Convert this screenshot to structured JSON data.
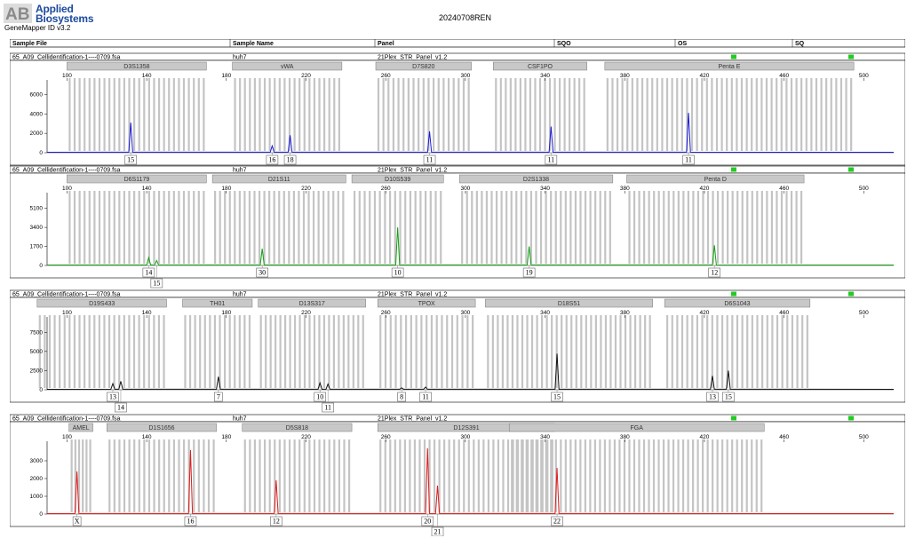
{
  "app": {
    "logo_line1": "Applied",
    "logo_line2": "Biosystems",
    "logo_mark": "AB",
    "version": "GeneMapper ID v3.2",
    "title": "20240708REN"
  },
  "columns": {
    "sample_file": "Sample File",
    "sample_name": "Sample Name",
    "panel": "Panel",
    "sqo": "SQO",
    "os": "OS",
    "sq": "SQ"
  },
  "status_color": "#22cc22",
  "panels": [
    {
      "sample_file": "65_A09_Cellidentification-1----0709.fsa",
      "sample_name": "huh7",
      "panel": "21Plex_STR_Panel_v1.2",
      "dye_color": "#1a1ad6",
      "y_ticks": [
        "6000",
        "4000",
        "2000",
        "0"
      ],
      "y_max": 7500,
      "size_ticks": [
        "100",
        "140",
        "180",
        "220",
        "260",
        "300",
        "340",
        "380",
        "420",
        "460",
        "500"
      ],
      "markers": [
        {
          "name": "D3S1358",
          "start": 100,
          "end": 170
        },
        {
          "name": "vWA",
          "start": 183,
          "end": 238
        },
        {
          "name": "D7S820",
          "start": 255,
          "end": 303
        },
        {
          "name": "CSF1PO",
          "start": 314,
          "end": 361
        },
        {
          "name": "Penta E",
          "start": 370,
          "end": 495
        }
      ],
      "peaks": [
        {
          "size": 132,
          "height": 3100,
          "allele": "15",
          "row": 0
        },
        {
          "size": 203,
          "height": 700,
          "allele": "16",
          "row": 0
        },
        {
          "size": 212,
          "height": 1800,
          "allele": "18",
          "row": 0
        },
        {
          "size": 282,
          "height": 2200,
          "allele": "11",
          "row": 0
        },
        {
          "size": 343,
          "height": 2700,
          "allele": "11",
          "row": 0
        },
        {
          "size": 412,
          "height": 4100,
          "allele": "11",
          "row": 0
        }
      ]
    },
    {
      "sample_file": "65_A09_Cellidentification-1----0709.fsa",
      "sample_name": "huh7",
      "panel": "21Plex_STR_Panel_v1.2",
      "dye_color": "#11a011",
      "y_ticks": [
        "5100",
        "3400",
        "1700",
        "0"
      ],
      "y_max": 6500,
      "size_ticks": [
        "100",
        "140",
        "180",
        "220",
        "260",
        "300",
        "340",
        "380",
        "420",
        "460",
        "500"
      ],
      "markers": [
        {
          "name": "D6S1179",
          "start": 100,
          "end": 170
        },
        {
          "name": "D21S11",
          "start": 173,
          "end": 240
        },
        {
          "name": "D10S539",
          "start": 243,
          "end": 289
        },
        {
          "name": "D2S1338",
          "start": 297,
          "end": 374
        },
        {
          "name": "Penta D",
          "start": 381,
          "end": 470
        }
      ],
      "peaks": [
        {
          "size": 141,
          "height": 700,
          "allele": "14",
          "row": 0
        },
        {
          "size": 145,
          "height": 450,
          "allele": "15",
          "row": 1
        },
        {
          "size": 198,
          "height": 1500,
          "allele": "30",
          "row": 0
        },
        {
          "size": 266,
          "height": 3400,
          "allele": "10",
          "row": 0
        },
        {
          "size": 332,
          "height": 1700,
          "allele": "19",
          "row": 0
        },
        {
          "size": 425,
          "height": 1800,
          "allele": "12",
          "row": 0
        }
      ]
    },
    {
      "sample_file": "65_A09_Cellidentification-1----0709.fsa",
      "sample_name": "huh7",
      "panel": "21Plex_STR_Panel_v1.2",
      "dye_color": "#111111",
      "y_ticks": [
        "7500",
        "5000",
        "2500",
        "0"
      ],
      "y_max": 9500,
      "size_ticks": [
        "100",
        "140",
        "180",
        "220",
        "260",
        "300",
        "340",
        "380",
        "420",
        "460",
        "500"
      ],
      "markers": [
        {
          "name": "D19S433",
          "start": 85,
          "end": 150
        },
        {
          "name": "TH01",
          "start": 158,
          "end": 193
        },
        {
          "name": "D13S317",
          "start": 196,
          "end": 250
        },
        {
          "name": "TPOX",
          "start": 256,
          "end": 305
        },
        {
          "name": "D18S51",
          "start": 310,
          "end": 394
        },
        {
          "name": "D6S1043",
          "start": 400,
          "end": 473
        }
      ],
      "peaks": [
        {
          "size": 123,
          "height": 800,
          "allele": "13",
          "row": 0
        },
        {
          "size": 127,
          "height": 1100,
          "allele": "14",
          "row": 1
        },
        {
          "size": 176,
          "height": 1700,
          "allele": "7",
          "row": 0
        },
        {
          "size": 227,
          "height": 900,
          "allele": "10",
          "row": 0
        },
        {
          "size": 231,
          "height": 750,
          "allele": "11",
          "row": 1
        },
        {
          "size": 268,
          "height": 250,
          "allele": "8",
          "row": 0
        },
        {
          "size": 280,
          "height": 350,
          "allele": "11",
          "row": 0
        },
        {
          "size": 346,
          "height": 4700,
          "allele": "15",
          "row": 0
        },
        {
          "size": 424,
          "height": 1800,
          "allele": "13",
          "row": 0
        },
        {
          "size": 432,
          "height": 2500,
          "allele": "15",
          "row": 0
        }
      ]
    },
    {
      "sample_file": "65_A09_Cellidentification-1----0709.fsa",
      "sample_name": "huh7",
      "panel": "21Plex_STR_Panel_v1.2",
      "dye_color": "#e01b1b",
      "y_ticks": [
        "3000",
        "2000",
        "1000",
        "0"
      ],
      "y_max": 4100,
      "size_ticks": [
        "100",
        "140",
        "180",
        "220",
        "260",
        "300",
        "340",
        "380",
        "420",
        "460",
        "500"
      ],
      "markers": [
        {
          "name": "AMEL",
          "start": 101,
          "end": 113
        },
        {
          "name": "D1S1656",
          "start": 120,
          "end": 175
        },
        {
          "name": "D5S818",
          "start": 188,
          "end": 243
        },
        {
          "name": "D12S391",
          "start": 256,
          "end": 345
        },
        {
          "name": "FGA",
          "start": 322,
          "end": 450
        }
      ],
      "peaks": [
        {
          "size": 105,
          "height": 2400,
          "allele": "X",
          "row": 0
        },
        {
          "size": 162,
          "height": 3600,
          "allele": "16",
          "row": 0
        },
        {
          "size": 205,
          "height": 1900,
          "allele": "12",
          "row": 0
        },
        {
          "size": 281,
          "height": 3700,
          "allele": "20",
          "row": 0
        },
        {
          "size": 286,
          "height": 1600,
          "allele": "21",
          "row": 1
        },
        {
          "size": 346,
          "height": 2600,
          "allele": "22",
          "row": 0
        }
      ]
    }
  ]
}
